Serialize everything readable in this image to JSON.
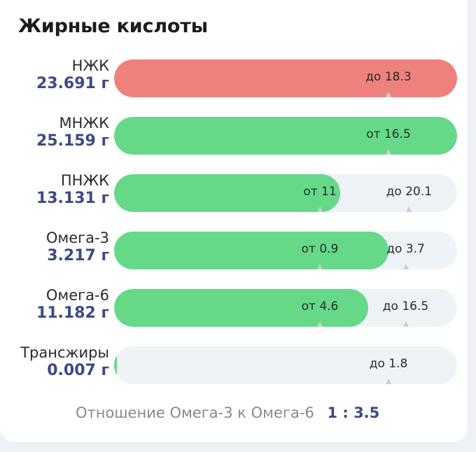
{
  "title": "Жирные кислоты",
  "colors": {
    "over": "#ee817b",
    "ok": "#65d987",
    "track": "#eef3f7",
    "value": "#3b4a86"
  },
  "rows": [
    {
      "label": "НЖК",
      "value": "23.691 г",
      "fill": 1.0,
      "status": "over",
      "marks": [
        {
          "text": "до 18.3",
          "pos": 0.8
        }
      ]
    },
    {
      "label": "МНЖК",
      "value": "25.159 г",
      "fill": 1.0,
      "status": "ok",
      "marks": [
        {
          "text": "от 16.5",
          "pos": 0.8
        }
      ]
    },
    {
      "label": "ПНЖК",
      "value": "13.131 г",
      "fill": 0.66,
      "status": "ok",
      "marks": [
        {
          "text": "от 11",
          "pos": 0.6
        },
        {
          "text": "до 20.1",
          "pos": 0.86
        }
      ]
    },
    {
      "label": "Омега-3",
      "value": "3.217 г",
      "fill": 0.8,
      "status": "ok",
      "marks": [
        {
          "text": "от 0.9",
          "pos": 0.6
        },
        {
          "text": "до 3.7",
          "pos": 0.85
        }
      ]
    },
    {
      "label": "Омега-6",
      "value": "11.182 г",
      "fill": 0.74,
      "status": "ok",
      "marks": [
        {
          "text": "от 4.6",
          "pos": 0.6
        },
        {
          "text": "до 16.5",
          "pos": 0.85
        }
      ]
    },
    {
      "label": "Трансжиры",
      "value": "0.007 г",
      "fill": 0.005,
      "status": "ok",
      "marks": [
        {
          "text": "до 1.8",
          "pos": 0.8
        }
      ]
    }
  ],
  "footer": {
    "label": "Отношение Омега-3 к Омега-6",
    "ratio": "1 : 3.5"
  }
}
